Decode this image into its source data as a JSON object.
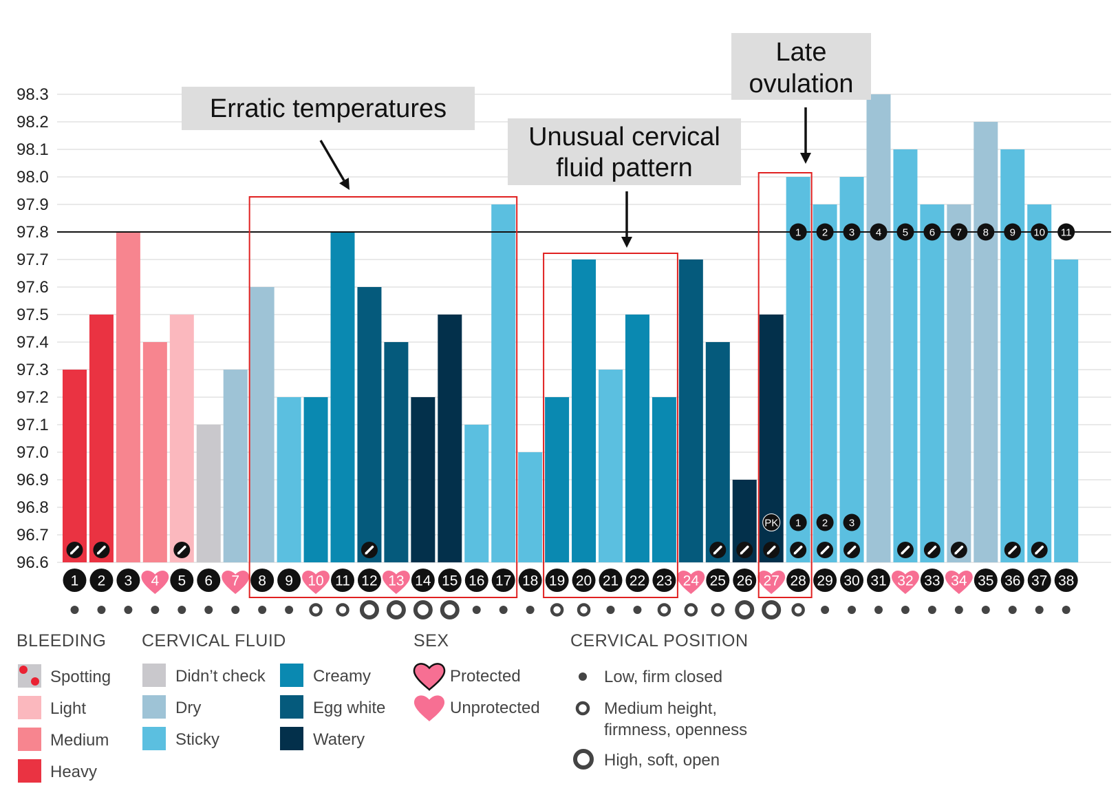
{
  "chart_data": {
    "type": "bar",
    "ylim": [
      96.6,
      98.3
    ],
    "y_ticks": [
      "98.3",
      "98.2",
      "98.1",
      "98.0",
      "97.9",
      "97.8",
      "97.7",
      "97.6",
      "97.5",
      "97.4",
      "97.3",
      "97.2",
      "97.1",
      "97.0",
      "96.9",
      "96.8",
      "96.7",
      "96.6"
    ],
    "coverline": 97.8,
    "categories": [
      "1",
      "2",
      "3",
      "4",
      "5",
      "6",
      "7",
      "8",
      "9",
      "10",
      "11",
      "12",
      "13",
      "14",
      "15",
      "16",
      "17",
      "18",
      "19",
      "20",
      "21",
      "22",
      "23",
      "24",
      "25",
      "26",
      "27",
      "28",
      "29",
      "30",
      "31",
      "32",
      "33",
      "34",
      "35",
      "36",
      "37",
      "38"
    ],
    "values": [
      97.3,
      97.5,
      97.8,
      97.4,
      97.5,
      97.1,
      97.3,
      97.6,
      97.2,
      97.2,
      97.8,
      97.6,
      97.4,
      97.2,
      97.5,
      97.1,
      97.9,
      97.0,
      97.2,
      97.7,
      97.3,
      97.5,
      97.2,
      97.7,
      97.4,
      96.9,
      97.5,
      98.0,
      97.9,
      98.0,
      98.3,
      98.1,
      97.9,
      97.9,
      98.2,
      98.1,
      97.9,
      97.7
    ],
    "fluid": [
      "heavy",
      "heavy",
      "medium",
      "medium",
      "light",
      "didnt_check",
      "dry",
      "dry",
      "sticky",
      "creamy",
      "creamy",
      "egg_white",
      "egg_white",
      "watery",
      "watery",
      "sticky",
      "sticky",
      "sticky",
      "creamy",
      "creamy",
      "sticky",
      "creamy",
      "creamy",
      "egg_white",
      "egg_white",
      "watery",
      "watery",
      "sticky",
      "sticky",
      "sticky",
      "dry",
      "sticky",
      "sticky",
      "dry",
      "dry",
      "sticky",
      "sticky",
      "sticky"
    ],
    "sex": {
      "4": "unprotected",
      "7": "unprotected",
      "10": "unprotected",
      "13": "unprotected",
      "24": "unprotected",
      "27": "unprotected",
      "32": "unprotected",
      "34": "unprotected"
    },
    "cervical_position": [
      "low",
      "low",
      "low",
      "low",
      "low",
      "low",
      "low",
      "low",
      "low",
      "medium",
      "medium",
      "high",
      "high",
      "high",
      "high",
      "low",
      "low",
      "low",
      "medium",
      "medium",
      "low",
      "low",
      "medium",
      "medium",
      "medium",
      "high",
      "high",
      "medium",
      "low",
      "low",
      "low",
      "low",
      "low",
      "low",
      "low",
      "low",
      "low",
      "low"
    ],
    "pencil_days": [
      1,
      2,
      5,
      12,
      25,
      26,
      27,
      28,
      29,
      30,
      32,
      33,
      34,
      36,
      37
    ],
    "post_peak_labels": [
      {
        "day": 27,
        "label": "PK"
      },
      {
        "day": 28,
        "label": "1"
      },
      {
        "day": 29,
        "label": "2"
      },
      {
        "day": 30,
        "label": "3"
      }
    ],
    "high_temp_labels": [
      {
        "day": 28,
        "label": "1"
      },
      {
        "day": 29,
        "label": "2"
      },
      {
        "day": 30,
        "label": "3"
      },
      {
        "day": 31,
        "label": "4"
      },
      {
        "day": 32,
        "label": "5"
      },
      {
        "day": 33,
        "label": "6"
      },
      {
        "day": 34,
        "label": "7"
      },
      {
        "day": 35,
        "label": "8"
      },
      {
        "day": 36,
        "label": "9"
      },
      {
        "day": 37,
        "label": "10"
      },
      {
        "day": 38,
        "label": "11"
      }
    ],
    "annotations": [
      {
        "id": "erratic",
        "lines": [
          "Erratic temperatures"
        ],
        "from_day": 8,
        "to_day": 17
      },
      {
        "id": "cervical",
        "lines": [
          "Unusual cervical",
          "fluid pattern"
        ],
        "from_day": 19,
        "to_day": 23
      },
      {
        "id": "ovulation",
        "lines": [
          "Late",
          "ovulation"
        ],
        "from_day": 27,
        "to_day": 27
      }
    ]
  },
  "colors": {
    "heavy": "#ea3342",
    "medium": "#f7858f",
    "light": "#fbb8be",
    "didnt_check": "#c9c8cc",
    "dry": "#9ec3d6",
    "sticky": "#5bbfe0",
    "creamy": "#0a89b1",
    "egg_white": "#055a7c",
    "watery": "#03304b",
    "heart": "#f76f93",
    "spotting": "#ea2233",
    "spotting_bg": "#c9c8cc",
    "callout_bg": "#dddddd",
    "box": "#e02020"
  },
  "legend": {
    "bleeding": {
      "heading": "BLEEDING",
      "items": [
        {
          "key": "spotting",
          "label": "Spotting"
        },
        {
          "key": "light",
          "label": "Light"
        },
        {
          "key": "medium",
          "label": "Medium"
        },
        {
          "key": "heavy",
          "label": "Heavy"
        }
      ]
    },
    "cervical_fluid": {
      "heading": "CERVICAL FLUID",
      "items": [
        {
          "key": "didnt_check",
          "label": "Didn’t check"
        },
        {
          "key": "dry",
          "label": "Dry"
        },
        {
          "key": "sticky",
          "label": "Sticky"
        },
        {
          "key": "creamy",
          "label": "Creamy"
        },
        {
          "key": "egg_white",
          "label": "Egg white"
        },
        {
          "key": "watery",
          "label": "Watery"
        }
      ]
    },
    "sex": {
      "heading": "SEX",
      "items": [
        {
          "key": "protected",
          "label": "Protected"
        },
        {
          "key": "unprotected",
          "label": "Unprotected"
        }
      ]
    },
    "cervical_position": {
      "heading": "CERVICAL POSITION",
      "items": [
        {
          "key": "low",
          "lines": [
            "Low, firm closed"
          ]
        },
        {
          "key": "medium",
          "lines": [
            "Medium height,",
            "firmness, openness"
          ]
        },
        {
          "key": "high",
          "lines": [
            "High, soft, open"
          ]
        }
      ]
    }
  }
}
